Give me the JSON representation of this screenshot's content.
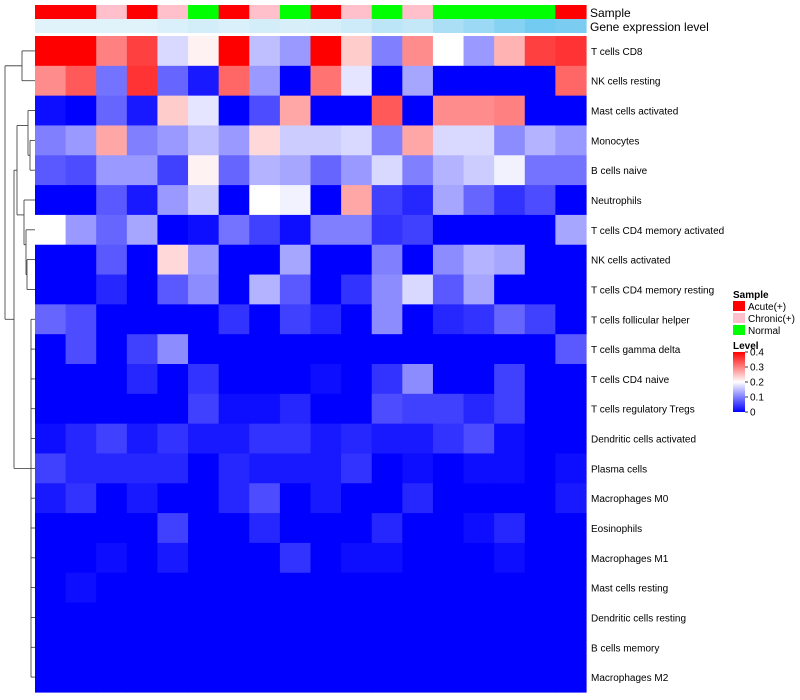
{
  "chart_data": {
    "type": "heatmap",
    "annotation_labels": [
      "Sample",
      "Gene expression level"
    ],
    "row_labels": [
      "T cells CD8",
      "NK cells resting",
      "Mast cells activated",
      "Monocytes",
      "B cells naive",
      "Neutrophils",
      "T cells CD4 memory activated",
      "NK cells activated",
      "T cells CD4 memory resting",
      "T cells follicular helper",
      "T cells gamma delta",
      "T cells CD4 naive",
      "T cells regulatory  Tregs",
      "Dendritic cells activated",
      "Plasma cells",
      "Macrophages M0",
      "Eosinophils",
      "Macrophages M1",
      "Mast cells resting",
      "Dendritic cells resting",
      "B cells memory",
      "Macrophages M2"
    ],
    "sample_groups": [
      "Acute(+)",
      "Acute(+)",
      "Chronic(+)",
      "Acute(+)",
      "Chronic(+)",
      "Normal",
      "Acute(+)",
      "Chronic(+)",
      "Normal",
      "Acute(+)",
      "Chronic(+)",
      "Normal",
      "Chronic(+)",
      "Normal",
      "Normal",
      "Normal",
      "Normal",
      "Acute(+)"
    ],
    "expression_level": [
      0.05,
      0.05,
      0.05,
      0.05,
      0.1,
      0.15,
      0.1,
      0.15,
      0.12,
      0.13,
      0.2,
      0.35,
      0.28,
      0.5,
      0.62,
      0.8,
      0.95,
      0.9
    ],
    "values": [
      [
        0.4,
        0.4,
        0.3,
        0.35,
        0.17,
        0.21,
        0.4,
        0.15,
        0.12,
        0.4,
        0.24,
        0.1,
        0.29,
        0.2,
        0.12,
        0.26,
        0.35,
        0.36
      ],
      [
        0.29,
        0.33,
        0.09,
        0.36,
        0.08,
        0.02,
        0.32,
        0.12,
        0.0,
        0.31,
        0.18,
        0.0,
        0.13,
        0.0,
        0.0,
        0.0,
        0.0,
        0.32
      ],
      [
        0.01,
        0.0,
        0.08,
        0.02,
        0.24,
        0.18,
        0.0,
        0.06,
        0.27,
        0.0,
        0.0,
        0.33,
        0.0,
        0.29,
        0.29,
        0.3,
        0.0,
        0.0
      ],
      [
        0.1,
        0.12,
        0.27,
        0.1,
        0.12,
        0.15,
        0.12,
        0.23,
        0.16,
        0.16,
        0.17,
        0.1,
        0.27,
        0.17,
        0.17,
        0.11,
        0.14,
        0.12
      ],
      [
        0.07,
        0.06,
        0.12,
        0.12,
        0.05,
        0.21,
        0.08,
        0.14,
        0.13,
        0.08,
        0.12,
        0.17,
        0.1,
        0.14,
        0.16,
        0.19,
        0.09,
        0.09
      ],
      [
        0.0,
        0.0,
        0.07,
        0.02,
        0.12,
        0.16,
        0.0,
        0.2,
        0.19,
        0.0,
        0.27,
        0.05,
        0.03,
        0.13,
        0.08,
        0.04,
        0.06,
        0.0
      ],
      [
        0.2,
        0.12,
        0.08,
        0.13,
        0.0,
        0.01,
        0.09,
        0.05,
        0.01,
        0.1,
        0.1,
        0.04,
        0.05,
        0.0,
        0.0,
        0.0,
        0.0,
        0.13
      ],
      [
        0.0,
        0.0,
        0.07,
        0.0,
        0.23,
        0.12,
        0.0,
        0.0,
        0.13,
        0.0,
        0.0,
        0.1,
        0.0,
        0.11,
        0.14,
        0.13,
        0.0,
        0.0
      ],
      [
        0.0,
        0.0,
        0.03,
        0.0,
        0.07,
        0.11,
        0.0,
        0.14,
        0.07,
        0.0,
        0.04,
        0.11,
        0.17,
        0.07,
        0.13,
        0.0,
        0.0,
        0.0
      ],
      [
        0.08,
        0.06,
        0.0,
        0.0,
        0.0,
        0.0,
        0.04,
        0.0,
        0.05,
        0.03,
        0.0,
        0.11,
        0.0,
        0.03,
        0.04,
        0.08,
        0.05,
        0.0
      ],
      [
        0.0,
        0.06,
        0.0,
        0.05,
        0.11,
        0.0,
        0.0,
        0.0,
        0.0,
        0.0,
        0.0,
        0.0,
        0.0,
        0.0,
        0.0,
        0.0,
        0.0,
        0.07
      ],
      [
        0.0,
        0.0,
        0.0,
        0.03,
        0.0,
        0.04,
        0.0,
        0.0,
        0.0,
        0.01,
        0.0,
        0.04,
        0.11,
        0.0,
        0.0,
        0.05,
        0.0,
        0.0
      ],
      [
        0.0,
        0.0,
        0.0,
        0.0,
        0.0,
        0.05,
        0.01,
        0.01,
        0.03,
        0.0,
        0.0,
        0.06,
        0.05,
        0.05,
        0.03,
        0.05,
        0.0,
        0.0
      ],
      [
        0.01,
        0.03,
        0.05,
        0.02,
        0.04,
        0.02,
        0.02,
        0.04,
        0.04,
        0.02,
        0.03,
        0.02,
        0.02,
        0.04,
        0.06,
        0.01,
        0.0,
        0.0
      ],
      [
        0.05,
        0.03,
        0.03,
        0.03,
        0.03,
        0.0,
        0.03,
        0.02,
        0.02,
        0.02,
        0.04,
        0.0,
        0.01,
        0.0,
        0.01,
        0.01,
        0.0,
        0.01
      ],
      [
        0.02,
        0.04,
        0.0,
        0.02,
        0.0,
        0.0,
        0.03,
        0.06,
        0.0,
        0.02,
        0.0,
        0.0,
        0.03,
        0.0,
        0.0,
        0.0,
        0.0,
        0.02
      ],
      [
        0.0,
        0.0,
        0.0,
        0.0,
        0.05,
        0.0,
        0.0,
        0.03,
        0.0,
        0.0,
        0.0,
        0.03,
        0.0,
        0.0,
        0.01,
        0.03,
        0.0,
        0.0
      ],
      [
        0.0,
        0.0,
        0.01,
        0.0,
        0.02,
        0.0,
        0.0,
        0.0,
        0.04,
        0.0,
        0.01,
        0.01,
        0.0,
        0.0,
        0.0,
        0.01,
        0.0,
        0.0
      ],
      [
        0.0,
        0.01,
        0.0,
        0.0,
        0.0,
        0.0,
        0.0,
        0.0,
        0.0,
        0.0,
        0.0,
        0.0,
        0.0,
        0.0,
        0.0,
        0.0,
        0.0,
        0.0
      ],
      [
        0.0,
        0.0,
        0.0,
        0.0,
        0.0,
        0.0,
        0.0,
        0.0,
        0.0,
        0.0,
        0.0,
        0.0,
        0.0,
        0.0,
        0.0,
        0.0,
        0.0,
        0.0
      ],
      [
        0.0,
        0.0,
        0.0,
        0.0,
        0.0,
        0.0,
        0.0,
        0.0,
        0.0,
        0.0,
        0.0,
        0.0,
        0.0,
        0.0,
        0.0,
        0.0,
        0.0,
        0.0
      ],
      [
        0.0,
        0.0,
        0.0,
        0.0,
        0.0,
        0.0,
        0.0,
        0.0,
        0.0,
        0.0,
        0.0,
        0.0,
        0.0,
        0.0,
        0.0,
        0.0,
        0.0,
        0.0
      ]
    ],
    "color_scale": {
      "min": 0,
      "mid": 0.2,
      "max": 0.4,
      "colors": [
        "#0000ff",
        "#ffffff",
        "#ff0000"
      ]
    },
    "legends": {
      "sample": {
        "title": "Sample",
        "items": [
          {
            "label": "Acute(+)",
            "color": "#ff0000"
          },
          {
            "label": "Chronic(+)",
            "color": "#ffc0cb"
          },
          {
            "label": "Normal",
            "color": "#00ff00"
          }
        ]
      },
      "level": {
        "title": "Level",
        "ticks": [
          {
            "label": "0.4",
            "value": 0.4
          },
          {
            "label": "0.3",
            "value": 0.3
          },
          {
            "label": "0.2",
            "value": 0.2
          },
          {
            "label": "0.1",
            "value": 0.1
          },
          {
            "label": "0",
            "value": 0.0
          }
        ]
      }
    },
    "expression_colors": {
      "low": "#e6f4fb",
      "high": "#6ec9f0"
    }
  }
}
